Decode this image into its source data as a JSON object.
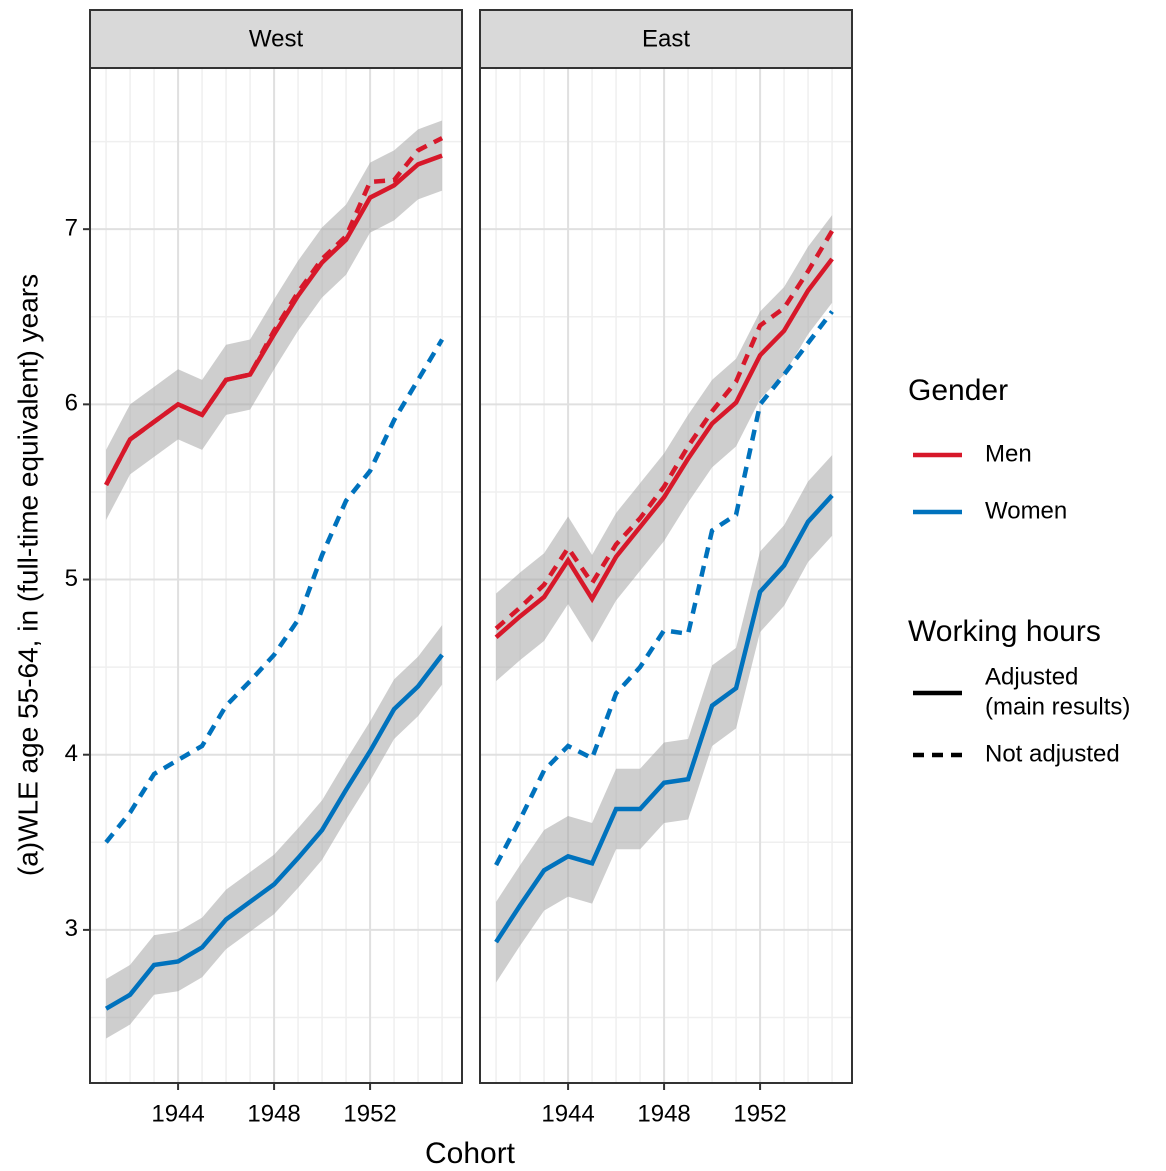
{
  "chart_data": {
    "type": "line",
    "ylabel": "(a)WLE age 55-64, in (full-time equivalent) years",
    "xlabel": "Cohort",
    "xlim": [
      1940.33,
      1955.83
    ],
    "xticks": [
      1944,
      1948,
      1952
    ],
    "ylim": [
      2.126,
      7.92
    ],
    "yticks": [
      3,
      4,
      5,
      6,
      7
    ],
    "grid": true,
    "x": [
      1941,
      1942,
      1943,
      1944,
      1945,
      1946,
      1947,
      1948,
      1949,
      1950,
      1951,
      1952,
      1953,
      1954,
      1955
    ],
    "panels": [
      {
        "title": "West",
        "series": [
          {
            "color": "#0072bd",
            "dash": false,
            "values": [
              2.55,
              2.63,
              2.8,
              2.82,
              2.9,
              3.06,
              3.16,
              3.26,
              3.41,
              3.57,
              3.8,
              4.02,
              4.26,
              4.39,
              4.57
            ],
            "error": [
              0.17,
              0.17,
              0.17,
              0.17,
              0.17,
              0.17,
              0.17,
              0.17,
              0.17,
              0.17,
              0.17,
              0.17,
              0.17,
              0.17,
              0.17
            ]
          },
          {
            "color": "#0072bd",
            "dash": true,
            "values": [
              3.5,
              3.67,
              3.89,
              3.97,
              4.05,
              4.28,
              4.42,
              4.57,
              4.77,
              5.14,
              5.45,
              5.62,
              5.91,
              6.14,
              6.37
            ]
          },
          {
            "color": "#d7182a",
            "dash": false,
            "values": [
              5.54,
              5.8,
              5.9,
              6.0,
              5.94,
              6.14,
              6.17,
              6.4,
              6.62,
              6.81,
              6.94,
              7.18,
              7.25,
              7.37,
              7.42
            ],
            "error": [
              0.2,
              0.2,
              0.2,
              0.2,
              0.2,
              0.2,
              0.2,
              0.2,
              0.2,
              0.2,
              0.2,
              0.2,
              0.2,
              0.2,
              0.2
            ]
          },
          {
            "color": "#d7182a",
            "dash": true,
            "values": [
              5.54,
              5.8,
              5.9,
              6.0,
              5.94,
              6.14,
              6.17,
              6.42,
              6.64,
              6.83,
              6.96,
              7.27,
              7.28,
              7.45,
              7.52
            ]
          }
        ]
      },
      {
        "title": "East",
        "series": [
          {
            "color": "#0072bd",
            "dash": false,
            "values": [
              2.93,
              3.14,
              3.34,
              3.42,
              3.38,
              3.69,
              3.69,
              3.84,
              3.86,
              4.28,
              4.38,
              4.93,
              5.08,
              5.33,
              5.48
            ],
            "error": [
              0.23,
              0.23,
              0.23,
              0.23,
              0.23,
              0.23,
              0.23,
              0.23,
              0.23,
              0.23,
              0.23,
              0.23,
              0.23,
              0.23,
              0.23
            ]
          },
          {
            "color": "#0072bd",
            "dash": true,
            "values": [
              3.37,
              3.63,
              3.91,
              4.05,
              3.98,
              4.35,
              4.5,
              4.71,
              4.69,
              5.28,
              5.37,
              6.0,
              6.17,
              6.35,
              6.53
            ]
          },
          {
            "color": "#d7182a",
            "dash": false,
            "values": [
              4.67,
              4.79,
              4.9,
              5.11,
              4.89,
              5.13,
              5.3,
              5.47,
              5.69,
              5.89,
              6.01,
              6.28,
              6.42,
              6.65,
              6.83
            ],
            "error": [
              0.25,
              0.25,
              0.25,
              0.25,
              0.25,
              0.25,
              0.25,
              0.25,
              0.25,
              0.25,
              0.25,
              0.25,
              0.25,
              0.25,
              0.25
            ]
          },
          {
            "color": "#d7182a",
            "dash": true,
            "values": [
              4.72,
              4.84,
              4.97,
              5.18,
              4.98,
              5.2,
              5.35,
              5.53,
              5.76,
              5.96,
              6.13,
              6.45,
              6.55,
              6.76,
              6.99
            ]
          }
        ]
      }
    ],
    "legend": {
      "gender": {
        "title": "Gender",
        "entries": [
          {
            "label": "Men",
            "color": "#d7182a"
          },
          {
            "label": "Women",
            "color": "#0072bd"
          }
        ]
      },
      "hours": {
        "title": "Working hours",
        "entries": [
          {
            "label": [
              "Adjusted",
              "(main results)"
            ],
            "dash": false
          },
          {
            "label": [
              "Not adjusted"
            ],
            "dash": true
          }
        ]
      }
    }
  }
}
